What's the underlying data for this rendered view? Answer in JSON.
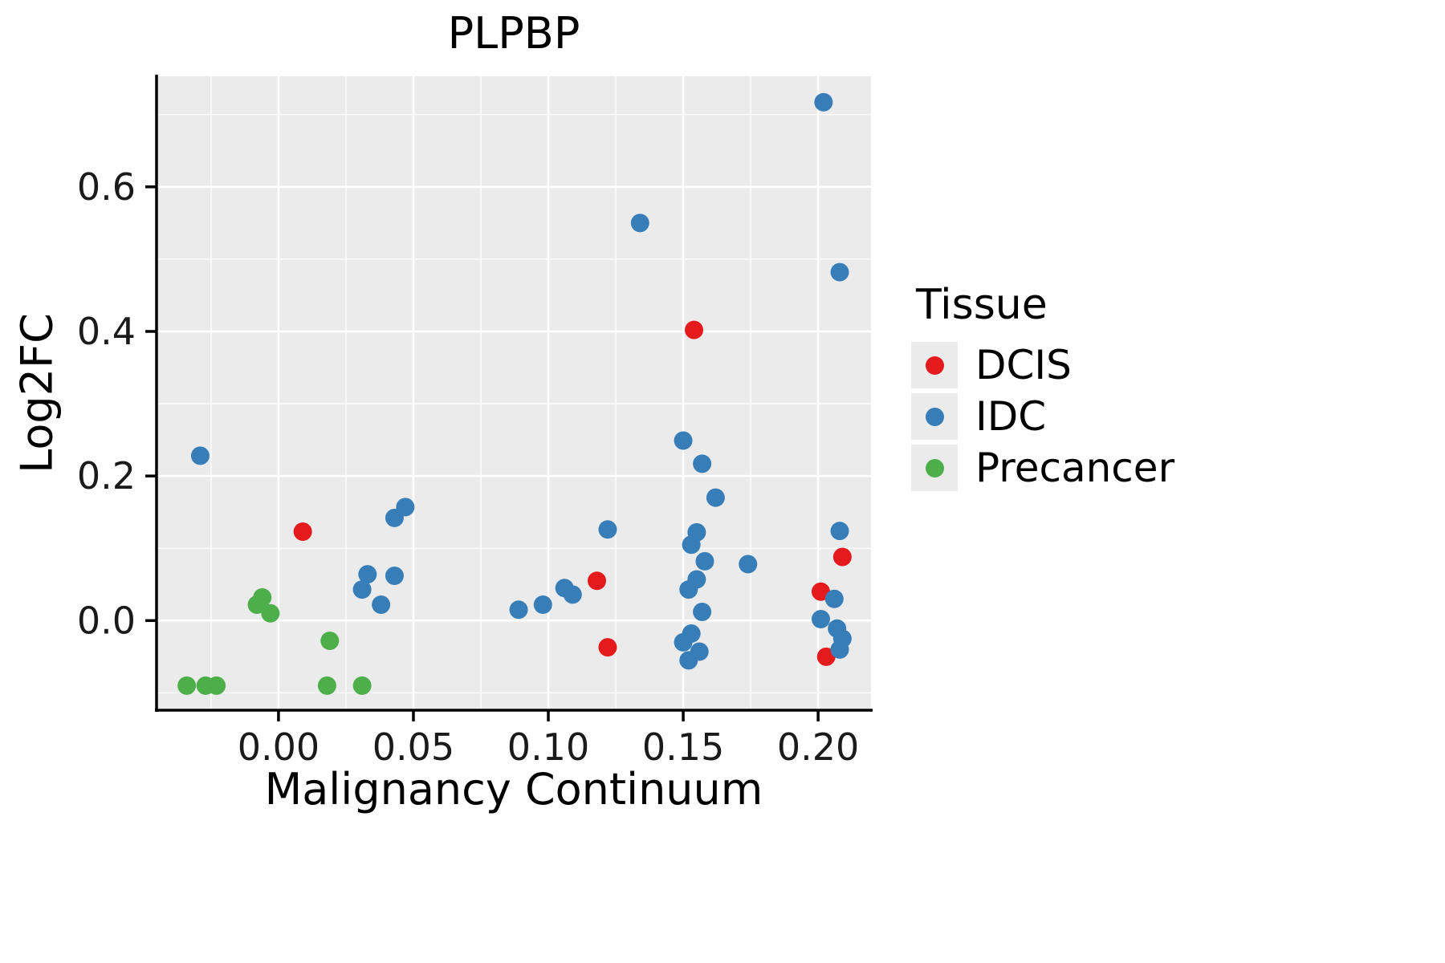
{
  "title": "PLPBP",
  "legend": {
    "title": "Tissue"
  },
  "chart_data": {
    "type": "scatter",
    "title": "PLPBP",
    "xlabel": "Malignancy Continuum",
    "ylabel": "Log2FC",
    "xlim": [
      -0.0452,
      0.2196
    ],
    "ylim": [
      -0.124,
      0.753
    ],
    "xticks": [
      0.0,
      0.05,
      0.1,
      0.15,
      0.2
    ],
    "xtick_labels": [
      "0.00",
      "0.05",
      "0.10",
      "0.15",
      "0.20"
    ],
    "yticks": [
      0.0,
      0.2,
      0.4,
      0.6
    ],
    "ytick_labels": [
      "0.0",
      "0.2",
      "0.4",
      "0.6"
    ],
    "grid": true,
    "legend_position": "right",
    "panel_bg": "#EBEBEB",
    "grid_color": "#FFFFFF",
    "axis_color": "#000000",
    "point_radius": 11.5,
    "series": [
      {
        "name": "DCIS",
        "color": "#E41A1C",
        "points": [
          [
            0.009,
            0.123
          ],
          [
            0.154,
            0.402
          ],
          [
            0.118,
            0.055
          ],
          [
            0.122,
            -0.037
          ],
          [
            0.209,
            0.088
          ],
          [
            0.201,
            0.04
          ],
          [
            0.203,
            -0.05
          ]
        ]
      },
      {
        "name": "IDC",
        "color": "#377EB8",
        "points": [
          [
            -0.029,
            0.228
          ],
          [
            0.202,
            0.717
          ],
          [
            0.134,
            0.55
          ],
          [
            0.208,
            0.482
          ],
          [
            0.15,
            0.249
          ],
          [
            0.157,
            0.217
          ],
          [
            0.162,
            0.17
          ],
          [
            0.047,
            0.157
          ],
          [
            0.043,
            0.142
          ],
          [
            0.122,
            0.126
          ],
          [
            0.208,
            0.124
          ],
          [
            0.155,
            0.122
          ],
          [
            0.153,
            0.105
          ],
          [
            0.158,
            0.082
          ],
          [
            0.174,
            0.078
          ],
          [
            0.155,
            0.057
          ],
          [
            0.152,
            0.043
          ],
          [
            0.043,
            0.062
          ],
          [
            0.033,
            0.064
          ],
          [
            0.031,
            0.043
          ],
          [
            0.038,
            0.022
          ],
          [
            0.106,
            0.045
          ],
          [
            0.109,
            0.036
          ],
          [
            0.098,
            0.022
          ],
          [
            0.089,
            0.015
          ],
          [
            0.157,
            0.012
          ],
          [
            0.153,
            -0.018
          ],
          [
            0.15,
            -0.03
          ],
          [
            0.156,
            -0.043
          ],
          [
            0.152,
            -0.055
          ],
          [
            0.206,
            0.03
          ],
          [
            0.201,
            0.002
          ],
          [
            0.207,
            -0.011
          ],
          [
            0.209,
            -0.025
          ],
          [
            0.208,
            -0.04
          ]
        ]
      },
      {
        "name": "Precancer",
        "color": "#4DAF4A",
        "points": [
          [
            -0.008,
            0.022
          ],
          [
            -0.006,
            0.032
          ],
          [
            -0.003,
            0.01
          ],
          [
            0.019,
            -0.028
          ],
          [
            -0.034,
            -0.09
          ],
          [
            -0.027,
            -0.09
          ],
          [
            -0.023,
            -0.09
          ],
          [
            0.018,
            -0.09
          ],
          [
            0.031,
            -0.09
          ]
        ]
      }
    ]
  }
}
